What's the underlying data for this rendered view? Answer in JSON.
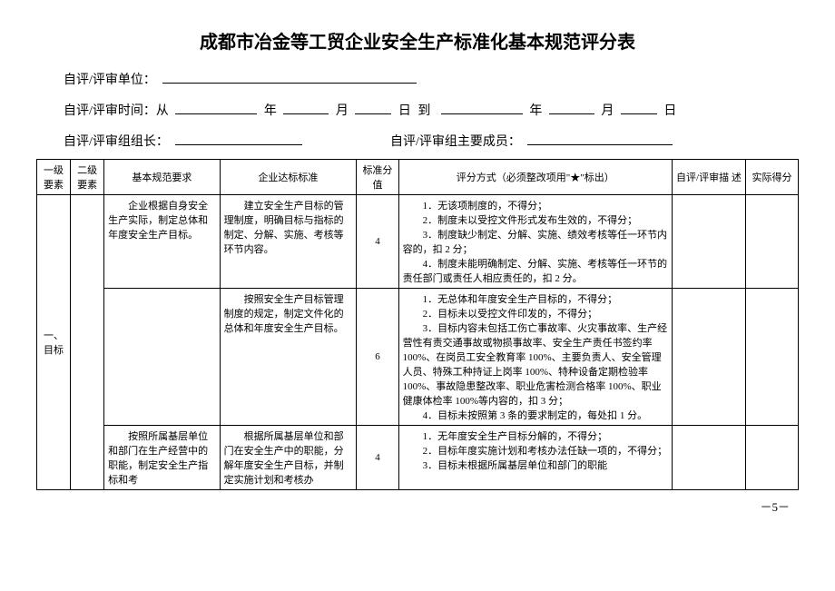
{
  "title": "成都市冶金等工贸企业安全生产标准化基本规范评分表",
  "formLines": {
    "unitLabel": "自评/评审单位：",
    "timeLabel": "自评/评审时间：从",
    "year": "年",
    "month": "月",
    "day": "日",
    "to": "到",
    "leaderLabel": "自评/评审组组长：",
    "membersLabel": "自评/评审组主要成员："
  },
  "headers": {
    "l1": "一级要素",
    "l2": "二级要素",
    "req": "基本规范要求",
    "std": "企业达标标准",
    "score": "标准分值",
    "method": "评分方式（必须整改项用\"★\"标出）",
    "desc": "自评/评审描    述",
    "actual": "实际得分"
  },
  "rows": [
    {
      "l1": "一、目标",
      "l2": "",
      "req": "　　企业根据自身安全生产实际，制定总体和年度安全生产目标。",
      "std": "　　建立安全生产目标的管理制度，明确目标与指标的制定、分解、实施、考核等环节内容。",
      "score": "4",
      "method": "　　1．无该项制度的，不得分；\n　　2．制度未以受控文件形式发布生效的，不得分；\n　　3．制度缺少制定、分解、实施、绩效考核等任一环节内容的，扣 2 分；\n　　4．制度未能明确制定、分解、实施、考核等任一环节的责任部门或责任人相应责任的，扣 2 分。"
    },
    {
      "req": "",
      "std": "　　按照安全生产目标管理制度的规定，制定文件化的总体和年度安全生产目标。",
      "score": "6",
      "method": "　　1．无总体和年度安全生产目标的，不得分；\n　　2．目标未以受控文件印发的，不得分；\n　　3．目标内容未包括工伤亡事故率、火灾事故率、生产经营性有责交通事故或物损事故率、安全生产责任书签约率 100%、在岗员工安全教育率 100%、主要负责人、安全管理人员、特殊工种持证上岗率 100%、特种设备定期检验率 100%、事故隐患整改率、职业危害检测合格率 100%、职业健康体检率 100%等内容的，扣 3 分；\n　　4．目标未按照第 3 条的要求制定的，每处扣 1 分。"
    },
    {
      "req": "　　按照所属基层单位和部门在生产经营中的职能，制定安全生产指标和考",
      "std": "　　根据所属基层单位和部门在安全生产中的职能，分解年度安全生产目标，并制定实施计划和考核办",
      "score": "4",
      "method": "　　1．无年度安全生产目标分解的，不得分；\n　　2．目标年度实施计划和考核办法任缺一项的，不得分；\n　　3．目标未根据所属基层单位和部门的职能"
    }
  ],
  "pageNum": "－5－"
}
